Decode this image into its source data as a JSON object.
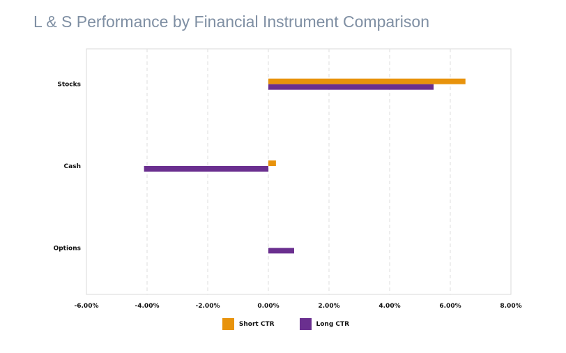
{
  "title": "L & S Performance by Financial Instrument Comparison",
  "colors": {
    "short": "#e8930c",
    "long": "#6a2f8f",
    "grid": "#dedede",
    "axis": "#d8d8d8"
  },
  "chart_data": {
    "type": "bar",
    "orientation": "horizontal",
    "title": "L & S Performance by Financial Instrument Comparison",
    "categories": [
      "Stocks",
      "Cash",
      "Options"
    ],
    "series": [
      {
        "name": "Short CTR",
        "color": "#e8930c",
        "values": [
          6.5,
          0.25,
          0.0
        ]
      },
      {
        "name": "Long CTR",
        "color": "#6a2f8f",
        "values": [
          5.45,
          -4.1,
          0.85
        ]
      }
    ],
    "xlim": [
      -6,
      8
    ],
    "xticks": [
      "-6.00%",
      "-4.00%",
      "-2.00%",
      "0.00%",
      "2.00%",
      "4.00%",
      "6.00%",
      "8.00%"
    ],
    "grid": true,
    "legend": "bottom"
  },
  "legend_items": [
    "Short CTR",
    "Long CTR"
  ]
}
